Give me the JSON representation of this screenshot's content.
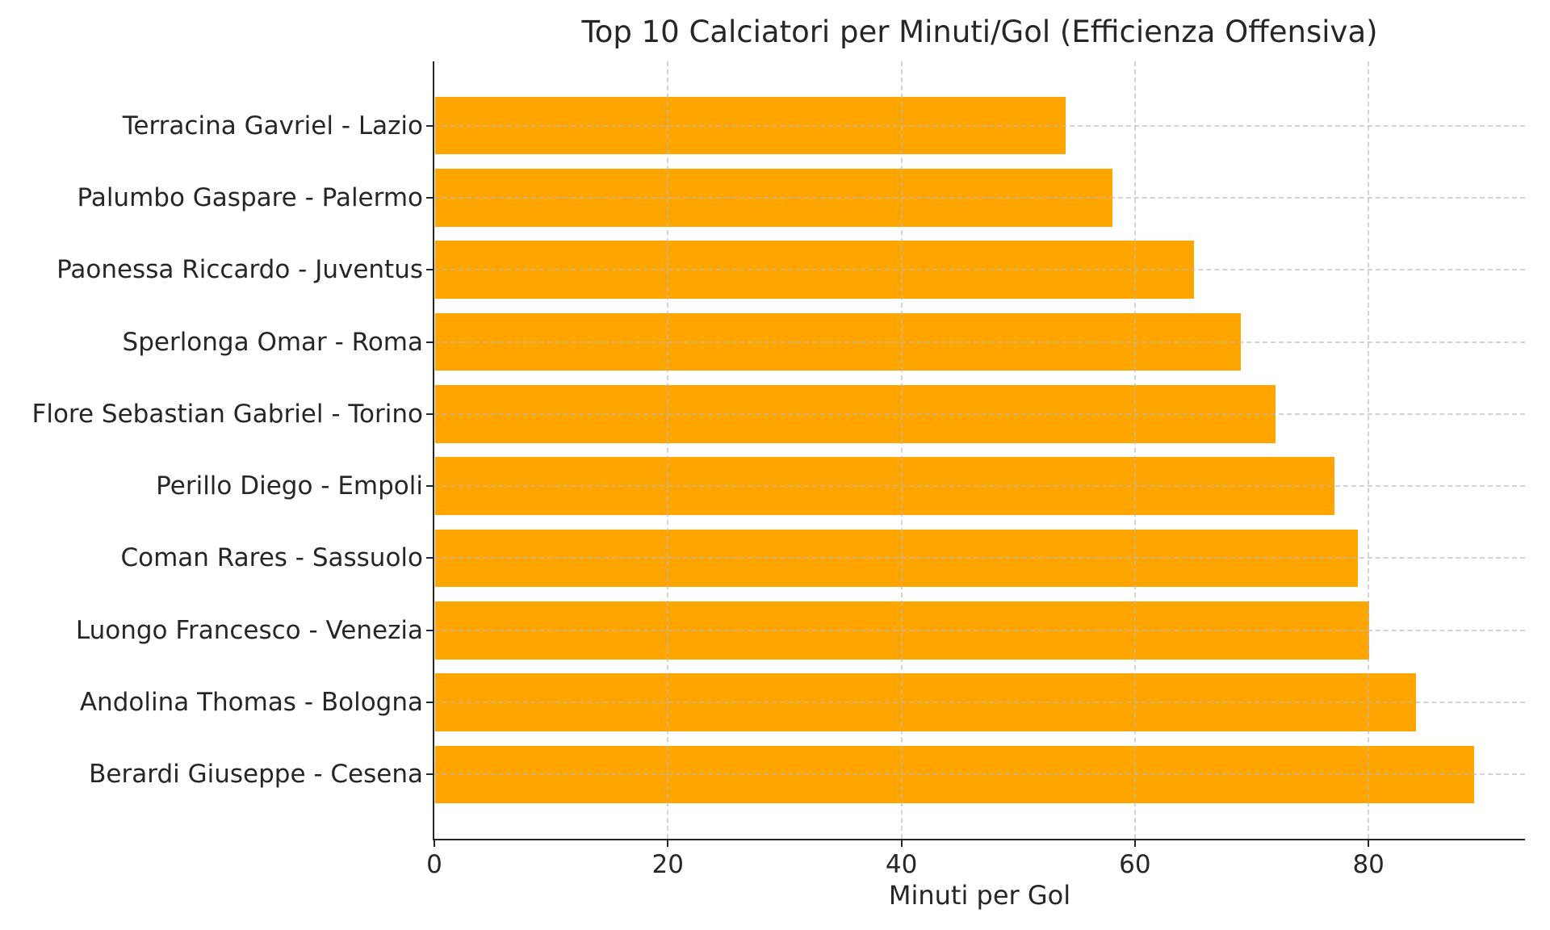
{
  "chart_data": {
    "type": "bar",
    "orientation": "horizontal",
    "title": "Top 10 Calciatori per Minuti/Gol (Efficienza Offensiva)",
    "xlabel": "Minuti per Gol",
    "ylabel": "",
    "categories": [
      "Terracina Gavriel - Lazio",
      "Palumbo Gaspare - Palermo",
      "Paonessa Riccardo - Juventus",
      "Sperlonga Omar - Roma",
      "Flore Sebastian Gabriel - Torino",
      "Perillo Diego - Empoli",
      "Coman Rares - Sassuolo",
      "Luongo Francesco - Venezia",
      "Andolina Thomas - Bologna",
      "Berardi Giuseppe - Cesena"
    ],
    "values": [
      54,
      58,
      65,
      69,
      72,
      77,
      79,
      80,
      84,
      89
    ],
    "x_ticks": [
      0,
      20,
      40,
      60,
      80
    ],
    "xlim": [
      0,
      93.4
    ],
    "grid": "dashed-both-axes",
    "legend": "none",
    "colors": {
      "bar": "#FFA500",
      "grid": "#b9b9b9",
      "axis": "#262626",
      "text": "#262626",
      "background": "#ffffff"
    }
  }
}
